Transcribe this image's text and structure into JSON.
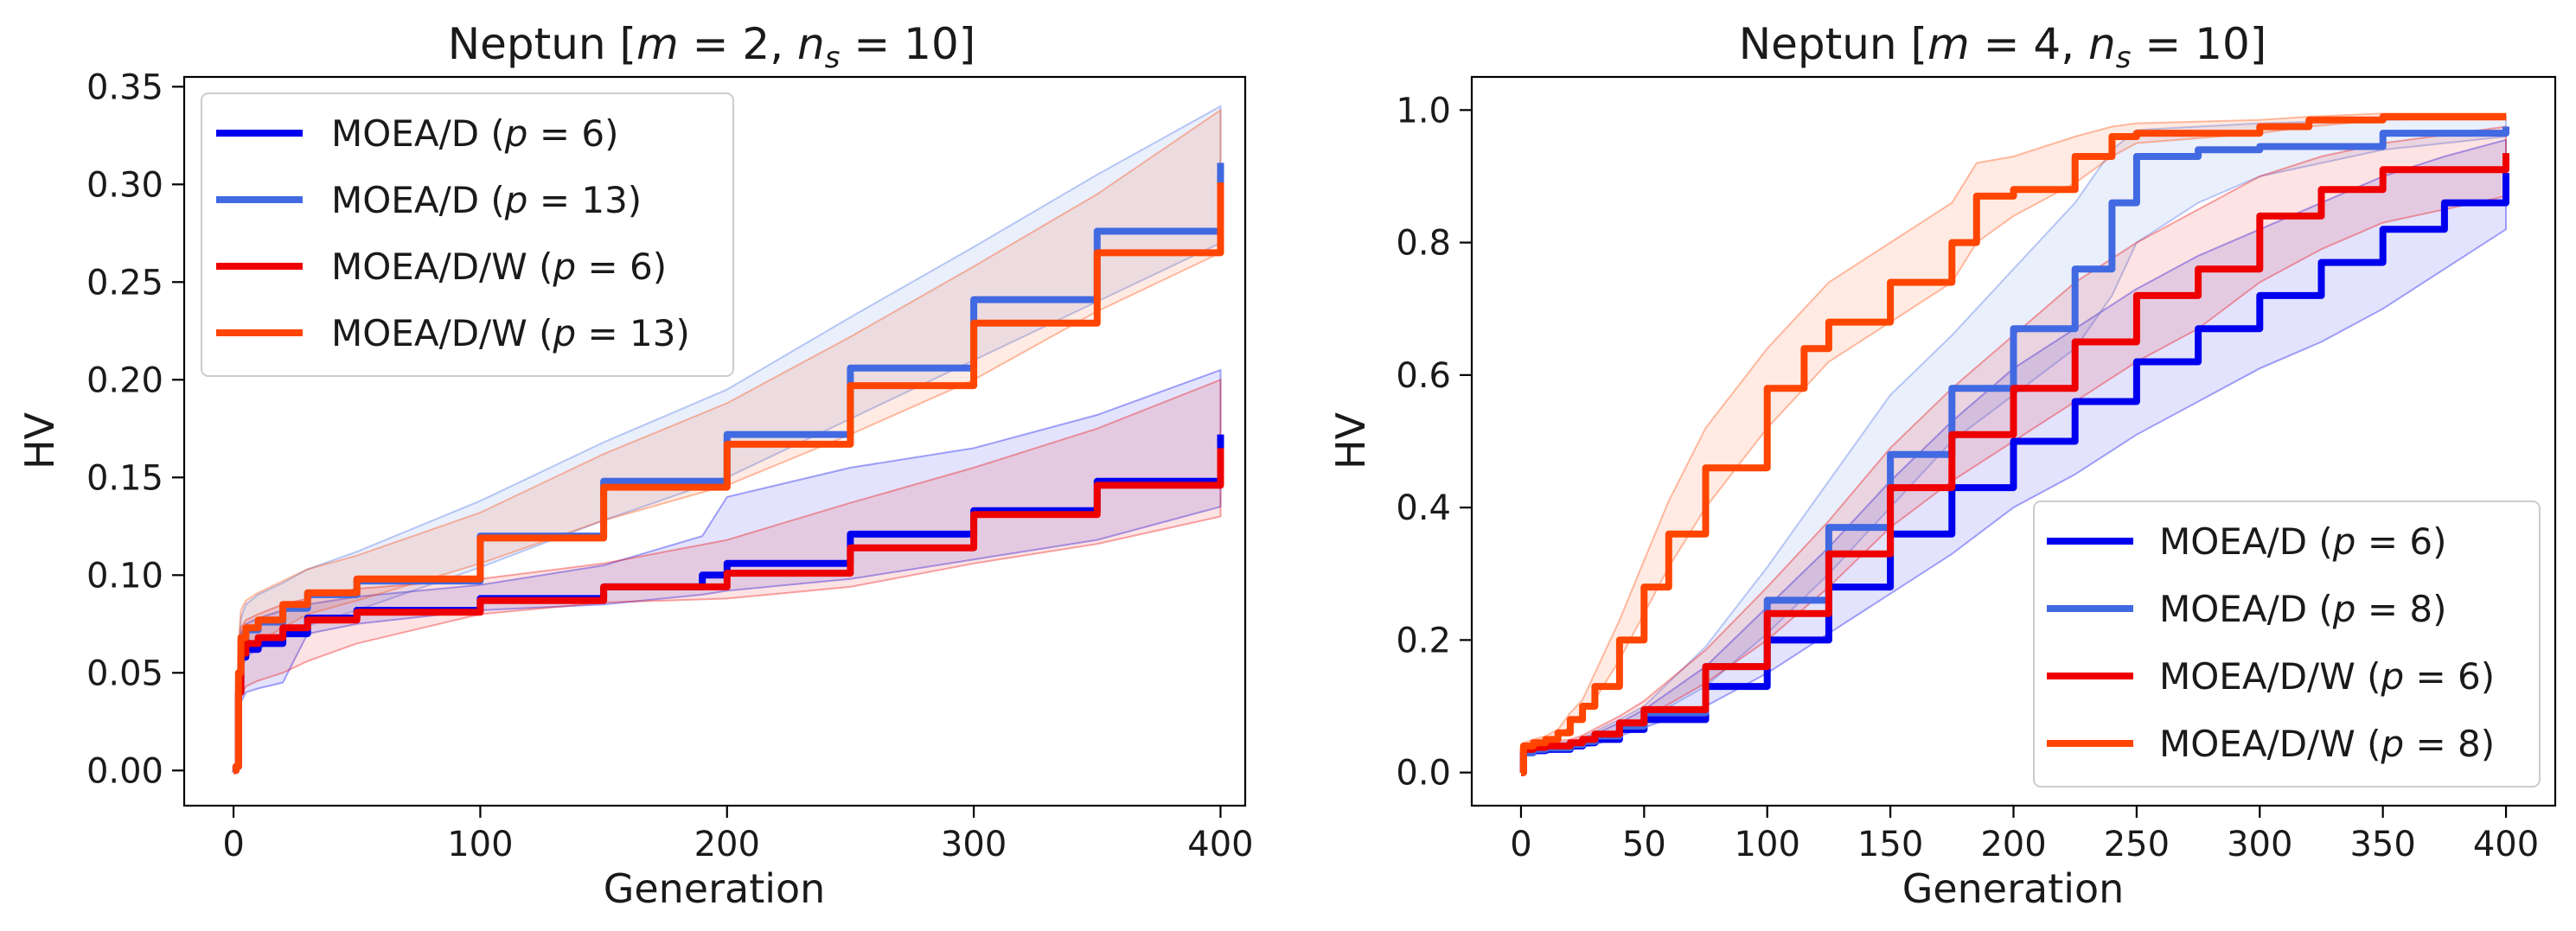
{
  "figure": {
    "background": "#ffffff"
  },
  "chart_data": [
    {
      "type": "line",
      "title": "Neptun [m = 2, n_s = 10]",
      "title_parts": {
        "prefix": "Neptun [",
        "m_sym": "m",
        "m_eq": " = 2, ",
        "n_sym": "n",
        "n_sub": "s",
        "n_eq": " = 10]"
      },
      "xlabel": "Generation",
      "ylabel": "HV",
      "xlim": [
        -20,
        410
      ],
      "ylim": [
        -0.018,
        0.355
      ],
      "xticks": [
        0,
        100,
        200,
        300,
        400
      ],
      "xtick_labels": [
        "0",
        "100",
        "200",
        "300",
        "400"
      ],
      "yticks": [
        0,
        0.05,
        0.1,
        0.15,
        0.2,
        0.25,
        0.3,
        0.35
      ],
      "ytick_labels": [
        "0.00",
        "0.05",
        "0.10",
        "0.15",
        "0.20",
        "0.25",
        "0.30",
        "0.35"
      ],
      "legend": {
        "position": "upper-left"
      },
      "series": [
        {
          "name": "MOEA/D (p = 6)",
          "label_prefix": "MOEA/D (",
          "label_param": "p",
          "label_value": " = 6)",
          "color": "#0000ee",
          "x": [
            0,
            1,
            2,
            3,
            5,
            10,
            20,
            30,
            50,
            100,
            150,
            190,
            200,
            250,
            300,
            350,
            400
          ],
          "y": [
            0,
            0.002,
            0.04,
            0.058,
            0.062,
            0.065,
            0.07,
            0.078,
            0.082,
            0.088,
            0.094,
            0.1,
            0.106,
            0.121,
            0.133,
            0.148,
            0.172
          ],
          "band_low": [
            0,
            0.001,
            0.02,
            0.035,
            0.04,
            0.042,
            0.045,
            0.07,
            0.075,
            0.082,
            0.085,
            0.09,
            0.092,
            0.098,
            0.108,
            0.118,
            0.135
          ],
          "band_high": [
            0,
            0.003,
            0.055,
            0.07,
            0.075,
            0.078,
            0.082,
            0.085,
            0.089,
            0.095,
            0.105,
            0.12,
            0.14,
            0.155,
            0.165,
            0.182,
            0.205
          ]
        },
        {
          "name": "MOEA/D (p = 13)",
          "label_prefix": "MOEA/D (",
          "label_param": "p",
          "label_value": " = 13)",
          "color": "#4169e1",
          "x": [
            0,
            1,
            2,
            3,
            5,
            10,
            20,
            30,
            50,
            100,
            150,
            200,
            250,
            300,
            350,
            400
          ],
          "y": [
            0,
            0.002,
            0.045,
            0.065,
            0.072,
            0.076,
            0.083,
            0.09,
            0.097,
            0.12,
            0.148,
            0.172,
            0.206,
            0.241,
            0.276,
            0.311
          ],
          "band_low": [
            0,
            0.001,
            0.03,
            0.05,
            0.058,
            0.062,
            0.068,
            0.074,
            0.082,
            0.104,
            0.128,
            0.15,
            0.18,
            0.21,
            0.24,
            0.27
          ],
          "band_high": [
            0,
            0.003,
            0.06,
            0.078,
            0.085,
            0.09,
            0.096,
            0.103,
            0.112,
            0.138,
            0.168,
            0.195,
            0.232,
            0.268,
            0.305,
            0.34
          ]
        },
        {
          "name": "MOEA/D/W (p = 6)",
          "label_prefix": "MOEA/D/W (",
          "label_param": "p",
          "label_value": " = 6)",
          "color": "#ee0000",
          "x": [
            0,
            1,
            2,
            3,
            5,
            10,
            20,
            30,
            50,
            100,
            150,
            200,
            250,
            300,
            350,
            400
          ],
          "y": [
            0,
            0.002,
            0.04,
            0.06,
            0.065,
            0.068,
            0.073,
            0.077,
            0.081,
            0.087,
            0.094,
            0.101,
            0.114,
            0.131,
            0.146,
            0.165
          ],
          "band_low": [
            0,
            0.001,
            0.02,
            0.038,
            0.043,
            0.046,
            0.05,
            0.056,
            0.065,
            0.08,
            0.086,
            0.088,
            0.094,
            0.106,
            0.116,
            0.13
          ],
          "band_high": [
            0,
            0.003,
            0.055,
            0.073,
            0.077,
            0.08,
            0.085,
            0.088,
            0.093,
            0.098,
            0.106,
            0.118,
            0.137,
            0.155,
            0.175,
            0.2
          ]
        },
        {
          "name": "MOEA/D/W (p = 13)",
          "label_prefix": "MOEA/D/W (",
          "label_param": "p",
          "label_value": " = 13)",
          "color": "#ff4500",
          "x": [
            0,
            1,
            2,
            3,
            5,
            10,
            20,
            30,
            50,
            100,
            150,
            200,
            250,
            300,
            350,
            400
          ],
          "y": [
            0,
            0.002,
            0.05,
            0.068,
            0.073,
            0.077,
            0.085,
            0.091,
            0.098,
            0.119,
            0.145,
            0.167,
            0.197,
            0.229,
            0.265,
            0.301
          ],
          "band_low": [
            0,
            0.001,
            0.035,
            0.055,
            0.062,
            0.066,
            0.073,
            0.08,
            0.087,
            0.106,
            0.128,
            0.146,
            0.172,
            0.2,
            0.235,
            0.265
          ],
          "band_high": [
            0,
            0.003,
            0.065,
            0.082,
            0.087,
            0.091,
            0.097,
            0.103,
            0.11,
            0.132,
            0.162,
            0.188,
            0.222,
            0.258,
            0.295,
            0.338
          ]
        }
      ]
    },
    {
      "type": "line",
      "title": "Neptun [m = 4, n_s = 10]",
      "title_parts": {
        "prefix": "Neptun [",
        "m_sym": "m",
        "m_eq": " = 4, ",
        "n_sym": "n",
        "n_sub": "s",
        "n_eq": " = 10]"
      },
      "xlabel": "Generation",
      "ylabel": "HV",
      "xlim": [
        -20,
        420
      ],
      "ylim": [
        -0.05,
        1.05
      ],
      "xticks": [
        0,
        50,
        100,
        150,
        200,
        250,
        300,
        350,
        400
      ],
      "xtick_labels": [
        "0",
        "50",
        "100",
        "150",
        "200",
        "250",
        "300",
        "350",
        "400"
      ],
      "yticks": [
        0,
        0.2,
        0.4,
        0.6,
        0.8,
        1.0
      ],
      "ytick_labels": [
        "0.0",
        "0.2",
        "0.4",
        "0.6",
        "0.8",
        "1.0"
      ],
      "legend": {
        "position": "lower-right"
      },
      "series": [
        {
          "name": "MOEA/D (p = 6)",
          "label_prefix": "MOEA/D (",
          "label_param": "p",
          "label_value": " = 6)",
          "color": "#0000ee",
          "x": [
            0,
            1,
            5,
            10,
            20,
            25,
            30,
            40,
            50,
            75,
            100,
            125,
            150,
            175,
            200,
            225,
            250,
            275,
            300,
            325,
            350,
            375,
            400
          ],
          "y": [
            0,
            0.03,
            0.033,
            0.035,
            0.04,
            0.045,
            0.05,
            0.065,
            0.08,
            0.13,
            0.2,
            0.28,
            0.36,
            0.43,
            0.5,
            0.56,
            0.62,
            0.67,
            0.72,
            0.77,
            0.82,
            0.86,
            0.905
          ],
          "band_low": [
            0,
            0.025,
            0.028,
            0.03,
            0.034,
            0.038,
            0.042,
            0.055,
            0.068,
            0.1,
            0.15,
            0.21,
            0.27,
            0.33,
            0.4,
            0.45,
            0.51,
            0.56,
            0.61,
            0.65,
            0.7,
            0.76,
            0.82
          ],
          "band_high": [
            0,
            0.035,
            0.038,
            0.04,
            0.045,
            0.05,
            0.058,
            0.075,
            0.095,
            0.16,
            0.25,
            0.34,
            0.44,
            0.53,
            0.61,
            0.67,
            0.73,
            0.78,
            0.82,
            0.86,
            0.9,
            0.93,
            0.955
          ]
        },
        {
          "name": "MOEA/D (p = 8)",
          "label_prefix": "MOEA/D (",
          "label_param": "p",
          "label_value": " = 8)",
          "color": "#4169e1",
          "x": [
            0,
            1,
            5,
            10,
            20,
            25,
            30,
            40,
            50,
            75,
            100,
            125,
            150,
            175,
            200,
            225,
            240,
            250,
            275,
            300,
            350,
            400
          ],
          "y": [
            0,
            0.03,
            0.035,
            0.037,
            0.042,
            0.047,
            0.055,
            0.07,
            0.09,
            0.16,
            0.26,
            0.37,
            0.48,
            0.58,
            0.67,
            0.76,
            0.86,
            0.93,
            0.94,
            0.945,
            0.965,
            0.975
          ],
          "band_low": [
            0,
            0.025,
            0.03,
            0.032,
            0.037,
            0.042,
            0.048,
            0.062,
            0.078,
            0.13,
            0.21,
            0.3,
            0.4,
            0.5,
            0.57,
            0.64,
            0.72,
            0.8,
            0.86,
            0.9,
            0.94,
            0.96
          ],
          "band_high": [
            0,
            0.035,
            0.04,
            0.042,
            0.047,
            0.052,
            0.062,
            0.08,
            0.1,
            0.19,
            0.31,
            0.44,
            0.57,
            0.66,
            0.76,
            0.86,
            0.94,
            0.97,
            0.975,
            0.98,
            0.985,
            0.99
          ]
        },
        {
          "name": "MOEA/D/W (p = 6)",
          "label_prefix": "MOEA/D/W (",
          "label_param": "p",
          "label_value": " = 6)",
          "color": "#ee0000",
          "x": [
            0,
            1,
            5,
            10,
            20,
            25,
            30,
            40,
            50,
            75,
            100,
            125,
            150,
            175,
            200,
            225,
            250,
            275,
            300,
            325,
            350,
            400
          ],
          "y": [
            0,
            0.035,
            0.038,
            0.04,
            0.045,
            0.05,
            0.058,
            0.075,
            0.095,
            0.16,
            0.24,
            0.33,
            0.43,
            0.51,
            0.58,
            0.65,
            0.72,
            0.76,
            0.84,
            0.88,
            0.91,
            0.935
          ],
          "band_low": [
            0,
            0.03,
            0.032,
            0.034,
            0.038,
            0.042,
            0.05,
            0.065,
            0.082,
            0.135,
            0.2,
            0.28,
            0.37,
            0.44,
            0.5,
            0.56,
            0.62,
            0.67,
            0.74,
            0.79,
            0.83,
            0.87
          ],
          "band_high": [
            0,
            0.04,
            0.043,
            0.045,
            0.05,
            0.056,
            0.066,
            0.085,
            0.108,
            0.185,
            0.28,
            0.38,
            0.49,
            0.58,
            0.66,
            0.74,
            0.8,
            0.85,
            0.9,
            0.93,
            0.95,
            0.975
          ]
        },
        {
          "name": "MOEA/D/W (p = 8)",
          "label_prefix": "MOEA/D/W (",
          "label_param": "p",
          "label_value": " = 8)",
          "color": "#ff4500",
          "x": [
            0,
            1,
            5,
            10,
            15,
            20,
            25,
            30,
            40,
            50,
            60,
            75,
            100,
            115,
            125,
            150,
            175,
            185,
            200,
            225,
            240,
            250,
            300,
            320,
            350,
            400
          ],
          "y": [
            0,
            0.04,
            0.045,
            0.05,
            0.06,
            0.08,
            0.1,
            0.13,
            0.2,
            0.28,
            0.36,
            0.46,
            0.58,
            0.64,
            0.68,
            0.74,
            0.8,
            0.87,
            0.88,
            0.93,
            0.96,
            0.965,
            0.975,
            0.985,
            0.99,
            0.99
          ],
          "band_low": [
            0,
            0.035,
            0.04,
            0.045,
            0.055,
            0.07,
            0.09,
            0.11,
            0.17,
            0.24,
            0.31,
            0.4,
            0.52,
            0.58,
            0.62,
            0.68,
            0.74,
            0.8,
            0.84,
            0.89,
            0.93,
            0.95,
            0.965,
            0.975,
            0.985,
            0.985
          ],
          "band_high": [
            0,
            0.045,
            0.05,
            0.055,
            0.065,
            0.09,
            0.11,
            0.15,
            0.23,
            0.32,
            0.41,
            0.52,
            0.64,
            0.7,
            0.74,
            0.8,
            0.86,
            0.92,
            0.93,
            0.96,
            0.975,
            0.98,
            0.985,
            0.99,
            0.995,
            0.995
          ]
        }
      ]
    }
  ]
}
